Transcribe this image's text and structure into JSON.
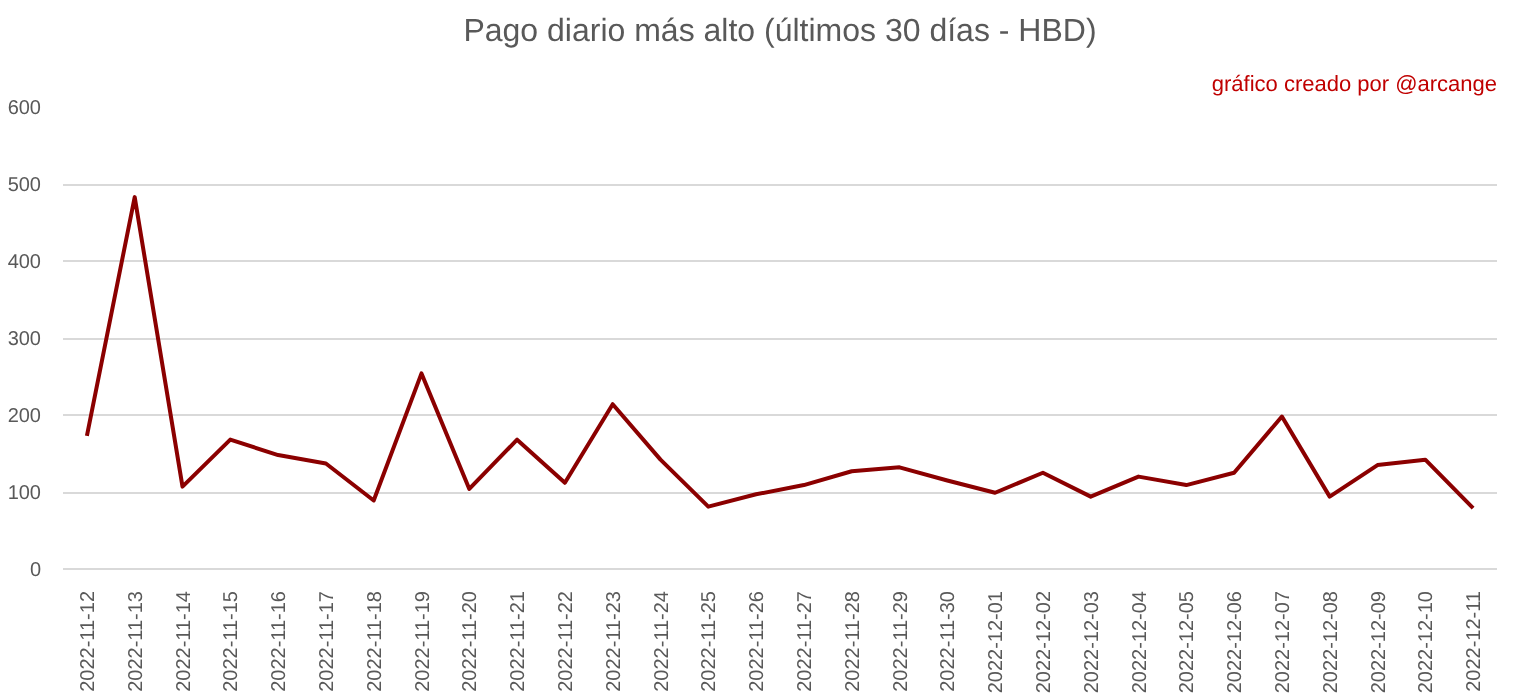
{
  "chart_data": {
    "type": "line",
    "title": "Pago diario más alto (últimos 30 días - HBD)",
    "annotations": [
      "gráfico creado por @arcange"
    ],
    "categories": [
      "2022-11-12",
      "2022-11-13",
      "2022-11-14",
      "2022-11-15",
      "2022-11-16",
      "2022-11-17",
      "2022-11-18",
      "2022-11-19",
      "2022-11-20",
      "2022-11-21",
      "2022-11-22",
      "2022-11-23",
      "2022-11-24",
      "2022-11-25",
      "2022-11-26",
      "2022-11-27",
      "2022-11-28",
      "2022-11-29",
      "2022-11-30",
      "2022-12-01",
      "2022-12-02",
      "2022-12-03",
      "2022-12-04",
      "2022-12-05",
      "2022-12-06",
      "2022-12-07",
      "2022-12-08",
      "2022-12-09",
      "2022-12-10",
      "2022-12-11"
    ],
    "series": [
      {
        "color": "#8b0000",
        "values": [
          173,
          483,
          107,
          168,
          148,
          137,
          89,
          254,
          104,
          168,
          112,
          214,
          142,
          81,
          97,
          109,
          127,
          132,
          115,
          99,
          125,
          94,
          120,
          109,
          125,
          198,
          94,
          135,
          142,
          79
        ]
      }
    ],
    "ylim": [
      0,
      600
    ],
    "yticks": [
      0,
      100,
      200,
      300,
      400,
      500,
      600
    ],
    "grid": "y",
    "line_style": "solid",
    "marker": "none"
  }
}
